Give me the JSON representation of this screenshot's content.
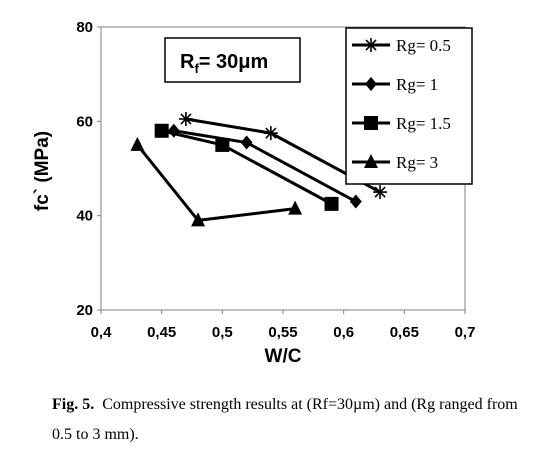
{
  "chart_data": {
    "type": "line",
    "title": "",
    "xlabel": "W/C",
    "ylabel": "fc` (MPa)",
    "xlim": [
      0.4,
      0.7
    ],
    "ylim": [
      20,
      80
    ],
    "x_ticks": [
      "0,4",
      "0,45",
      "0,5",
      "0,55",
      "0,6",
      "0,65",
      "0,7"
    ],
    "y_ticks": [
      "20",
      "40",
      "60",
      "80"
    ],
    "grid": false,
    "legend_position": "top-right",
    "annotation": {
      "main": "R",
      "sub": "f",
      "rest": "= 30μm"
    },
    "series": [
      {
        "name": "Rg= 0.5",
        "marker": "star",
        "x": [
          0.47,
          0.54,
          0.63
        ],
        "y": [
          60.5,
          57.5,
          45
        ]
      },
      {
        "name": "Rg= 1",
        "marker": "diamond",
        "x": [
          0.46,
          0.52,
          0.61
        ],
        "y": [
          58,
          55.5,
          43
        ]
      },
      {
        "name": "Rg= 1.5",
        "marker": "square",
        "x": [
          0.45,
          0.5,
          0.59
        ],
        "y": [
          58,
          55,
          42.5
        ]
      },
      {
        "name": "Rg= 3",
        "marker": "triangle",
        "x": [
          0.43,
          0.48,
          0.56
        ],
        "y": [
          55,
          39,
          41.5
        ]
      }
    ]
  },
  "caption": {
    "label": "Fig. 5.",
    "text": "Compressive strength results at (Rf=30µm) and (Rg ranged from 0.5 to 3 mm)."
  }
}
